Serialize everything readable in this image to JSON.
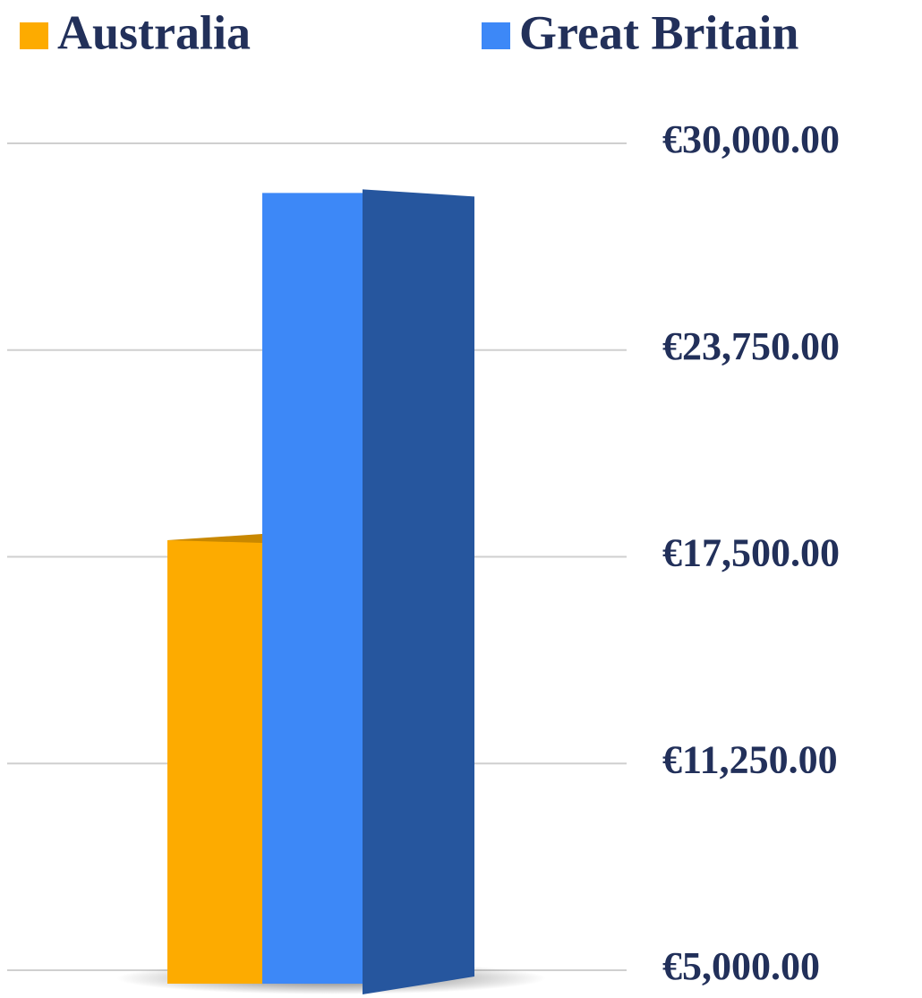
{
  "chart_data": {
    "type": "bar",
    "categories": [
      null
    ],
    "series": [
      {
        "name": "Australia",
        "color": "#fdab00",
        "side_color": "#c98800",
        "values": [
          18000
        ]
      },
      {
        "name": "Great Britain",
        "color": "#3d88f7",
        "side_color": "#26569e",
        "values": [
          28500
        ]
      }
    ],
    "ylim": [
      5000,
      30000
    ],
    "yticks": [
      {
        "value": 5000,
        "label": "€5,000.00"
      },
      {
        "value": 11250,
        "label": "€11,250.00"
      },
      {
        "value": 17500,
        "label": "€17,500.00"
      },
      {
        "value": 23750,
        "label": "€23,750.00"
      },
      {
        "value": 30000,
        "label": "€30,000.00"
      }
    ],
    "grid": true,
    "legend": "top"
  }
}
